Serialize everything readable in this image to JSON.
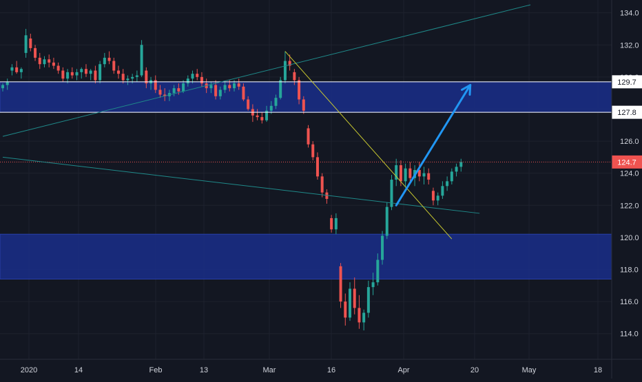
{
  "colors": {
    "background": "#131722",
    "grid": "#1e222d",
    "axis_text": "#d1d4dc",
    "up_candle": "#26a69a",
    "down_candle": "#ef5350",
    "zone_fill": "#1a2e8a",
    "zone_border": "#2a3fa8",
    "level_line": "#ffffff",
    "trend_line": "#1f8a8a",
    "yellow_line": "#c8c830",
    "arrow": "#2196f3",
    "price_line": "#ef5350",
    "price_label_bg": "#ef5350"
  },
  "price_axis": {
    "ticks": [
      "134.0",
      "132.0",
      "130.0",
      "128.0",
      "126.0",
      "124.0",
      "122.0",
      "120.0",
      "118.0",
      "116.0",
      "114.0"
    ]
  },
  "time_axis": {
    "ticks": [
      "2020",
      "14",
      "Feb",
      "13",
      "Mar",
      "16",
      "Apr",
      "20",
      "May",
      "18"
    ]
  },
  "price_labels": {
    "upper_level": "129.7",
    "lower_level": "127.8",
    "last_price": "124.7"
  },
  "chart_data": {
    "type": "candlestick",
    "ylim": [
      112.4,
      134.8
    ],
    "x_count": 126,
    "zones": [
      {
        "from": 127.8,
        "to": 129.7
      },
      {
        "from": 117.4,
        "to": 120.2
      }
    ],
    "levels": [
      129.7,
      127.8
    ],
    "last_price": 124.7,
    "trendlines": [
      {
        "name": "rising-teal",
        "x1": 0,
        "y1": 126.3,
        "x2": 114,
        "y2": 134.5
      },
      {
        "name": "falling-teal",
        "x1": 0,
        "y1": 125.0,
        "x2": 103,
        "y2": 121.5
      },
      {
        "name": "yellow-downtrend",
        "x1": 61,
        "y1": 131.6,
        "x2": 97,
        "y2": 119.9
      }
    ],
    "arrow": {
      "x1": 85,
      "y1": 122.0,
      "x2": 101,
      "y2": 129.5
    },
    "candles": [
      [
        0,
        129.3,
        129.6,
        129.1,
        129.5
      ],
      [
        1,
        129.5,
        129.9,
        129.2,
        129.7
      ],
      [
        2,
        130.4,
        130.8,
        130.1,
        130.6
      ],
      [
        3,
        130.6,
        131.0,
        130.2,
        130.3
      ],
      [
        4,
        130.3,
        130.6,
        129.9,
        130.5
      ],
      [
        5,
        131.5,
        133.0,
        131.2,
        132.6
      ],
      [
        6,
        132.4,
        132.7,
        131.6,
        131.8
      ],
      [
        7,
        131.8,
        132.0,
        131.0,
        131.2
      ],
      [
        8,
        131.2,
        131.5,
        130.5,
        130.8
      ],
      [
        9,
        130.8,
        131.3,
        130.6,
        131.1
      ],
      [
        10,
        131.1,
        131.4,
        130.6,
        130.9
      ],
      [
        11,
        130.9,
        131.2,
        130.5,
        130.7
      ],
      [
        12,
        130.7,
        130.9,
        130.2,
        130.4
      ],
      [
        13,
        130.4,
        130.6,
        129.7,
        129.9
      ],
      [
        14,
        129.9,
        130.5,
        129.6,
        130.3
      ],
      [
        15,
        130.3,
        130.6,
        129.9,
        130.1
      ],
      [
        16,
        130.1,
        130.5,
        129.8,
        130.3
      ],
      [
        17,
        130.3,
        130.6,
        129.9,
        130.5
      ],
      [
        18,
        130.5,
        130.8,
        130.0,
        130.2
      ],
      [
        19,
        130.2,
        130.5,
        129.8,
        130.4
      ],
      [
        20,
        130.4,
        130.7,
        129.6,
        129.8
      ],
      [
        21,
        129.8,
        131.0,
        129.6,
        130.8
      ],
      [
        22,
        130.8,
        131.5,
        130.6,
        131.2
      ],
      [
        23,
        131.2,
        131.6,
        130.8,
        131.0
      ],
      [
        24,
        131.0,
        131.2,
        130.2,
        130.4
      ],
      [
        25,
        130.4,
        130.7,
        129.9,
        130.2
      ],
      [
        26,
        130.2,
        130.5,
        129.6,
        129.8
      ],
      [
        27,
        129.8,
        130.1,
        129.5,
        129.9
      ],
      [
        28,
        129.9,
        130.2,
        129.6,
        130.0
      ],
      [
        29,
        130.0,
        130.4,
        129.7,
        130.1
      ],
      [
        30,
        130.1,
        132.3,
        130.0,
        132.0
      ],
      [
        31,
        130.4,
        130.6,
        129.3,
        129.6
      ],
      [
        32,
        129.6,
        130.0,
        129.2,
        129.8
      ],
      [
        33,
        129.8,
        130.1,
        129.0,
        129.2
      ],
      [
        34,
        129.2,
        129.5,
        128.7,
        128.9
      ],
      [
        35,
        128.9,
        129.3,
        128.5,
        128.8
      ],
      [
        36,
        128.8,
        129.2,
        128.5,
        129.0
      ],
      [
        37,
        129.0,
        129.5,
        128.8,
        129.3
      ],
      [
        38,
        129.3,
        129.6,
        128.9,
        129.1
      ],
      [
        39,
        129.1,
        129.8,
        129.0,
        129.6
      ],
      [
        40,
        129.6,
        130.1,
        129.4,
        129.9
      ],
      [
        41,
        129.9,
        130.4,
        129.6,
        130.2
      ],
      [
        42,
        130.2,
        130.5,
        129.8,
        130.0
      ],
      [
        43,
        130.0,
        130.3,
        129.4,
        129.6
      ],
      [
        44,
        129.6,
        129.9,
        129.0,
        129.3
      ],
      [
        45,
        129.3,
        129.7,
        129.0,
        129.5
      ],
      [
        46,
        129.5,
        129.8,
        128.6,
        128.8
      ],
      [
        47,
        128.8,
        129.4,
        128.6,
        129.2
      ],
      [
        48,
        129.2,
        129.7,
        129.0,
        129.5
      ],
      [
        49,
        129.5,
        129.8,
        129.1,
        129.3
      ],
      [
        50,
        129.3,
        129.8,
        129.1,
        129.6
      ],
      [
        51,
        129.6,
        129.9,
        129.2,
        129.4
      ],
      [
        52,
        129.4,
        129.6,
        128.5,
        128.6
      ],
      [
        53,
        128.6,
        128.8,
        127.9,
        128.0
      ],
      [
        54,
        128.0,
        128.3,
        127.2,
        127.6
      ],
      [
        55,
        127.6,
        128.0,
        127.3,
        127.5
      ],
      [
        56,
        127.5,
        127.8,
        127.1,
        127.3
      ],
      [
        57,
        127.3,
        128.2,
        127.2,
        127.9
      ],
      [
        58,
        127.9,
        128.5,
        127.7,
        128.2
      ],
      [
        59,
        128.2,
        128.9,
        128.0,
        128.7
      ],
      [
        60,
        128.7,
        130.0,
        128.6,
        129.8
      ],
      [
        61,
        129.8,
        131.6,
        129.6,
        131.0
      ],
      [
        62,
        131.0,
        131.4,
        130.4,
        130.7
      ],
      [
        63,
        130.3,
        130.5,
        129.5,
        129.8
      ],
      [
        64,
        129.8,
        130.0,
        128.3,
        128.6
      ],
      [
        65,
        128.6,
        128.8,
        127.7,
        127.9
      ],
      [
        66,
        126.8,
        127.0,
        125.6,
        125.8
      ],
      [
        67,
        125.8,
        126.0,
        124.8,
        125.0
      ],
      [
        68,
        125.0,
        125.3,
        123.6,
        123.8
      ],
      [
        69,
        123.8,
        124.0,
        122.5,
        122.8
      ],
      [
        70,
        122.8,
        123.0,
        122.1,
        122.4
      ],
      [
        71,
        121.2,
        121.4,
        120.3,
        120.5
      ],
      [
        72,
        120.5,
        121.5,
        120.2,
        121.2
      ],
      [
        73,
        118.2,
        118.4,
        115.6,
        116.0
      ],
      [
        74,
        116.0,
        116.5,
        114.5,
        115.0
      ],
      [
        75,
        115.0,
        117.2,
        114.8,
        116.8
      ],
      [
        76,
        116.8,
        117.5,
        115.2,
        115.6
      ],
      [
        77,
        115.6,
        116.4,
        114.3,
        114.7
      ],
      [
        78,
        114.7,
        115.5,
        114.2,
        115.3
      ],
      [
        79,
        115.3,
        117.3,
        115.0,
        116.9
      ],
      [
        80,
        116.9,
        117.8,
        116.4,
        117.2
      ],
      [
        81,
        117.2,
        119.0,
        117.0,
        118.6
      ],
      [
        82,
        118.6,
        120.4,
        118.3,
        120.1
      ],
      [
        83,
        120.1,
        122.2,
        119.9,
        121.9
      ],
      [
        84,
        121.9,
        123.9,
        121.7,
        123.6
      ],
      [
        85,
        123.6,
        124.9,
        123.2,
        124.5
      ],
      [
        86,
        124.5,
        124.8,
        123.2,
        123.5
      ],
      [
        87,
        123.5,
        124.6,
        123.1,
        124.3
      ],
      [
        88,
        124.3,
        124.7,
        123.4,
        123.7
      ],
      [
        89,
        123.7,
        124.5,
        123.2,
        124.2
      ],
      [
        90,
        124.2,
        124.7,
        123.5,
        123.8
      ],
      [
        91,
        123.8,
        124.4,
        123.3,
        124.0
      ],
      [
        92,
        124.0,
        124.3,
        123.3,
        123.6
      ],
      [
        93,
        122.9,
        123.1,
        122.0,
        122.3
      ],
      [
        94,
        122.3,
        122.8,
        122.0,
        122.6
      ],
      [
        95,
        122.6,
        123.5,
        122.4,
        123.2
      ],
      [
        96,
        123.2,
        123.8,
        122.9,
        123.5
      ],
      [
        97,
        123.5,
        124.3,
        123.3,
        124.1
      ],
      [
        98,
        124.1,
        124.6,
        123.8,
        124.4
      ],
      [
        99,
        124.4,
        124.9,
        124.1,
        124.7
      ]
    ]
  }
}
